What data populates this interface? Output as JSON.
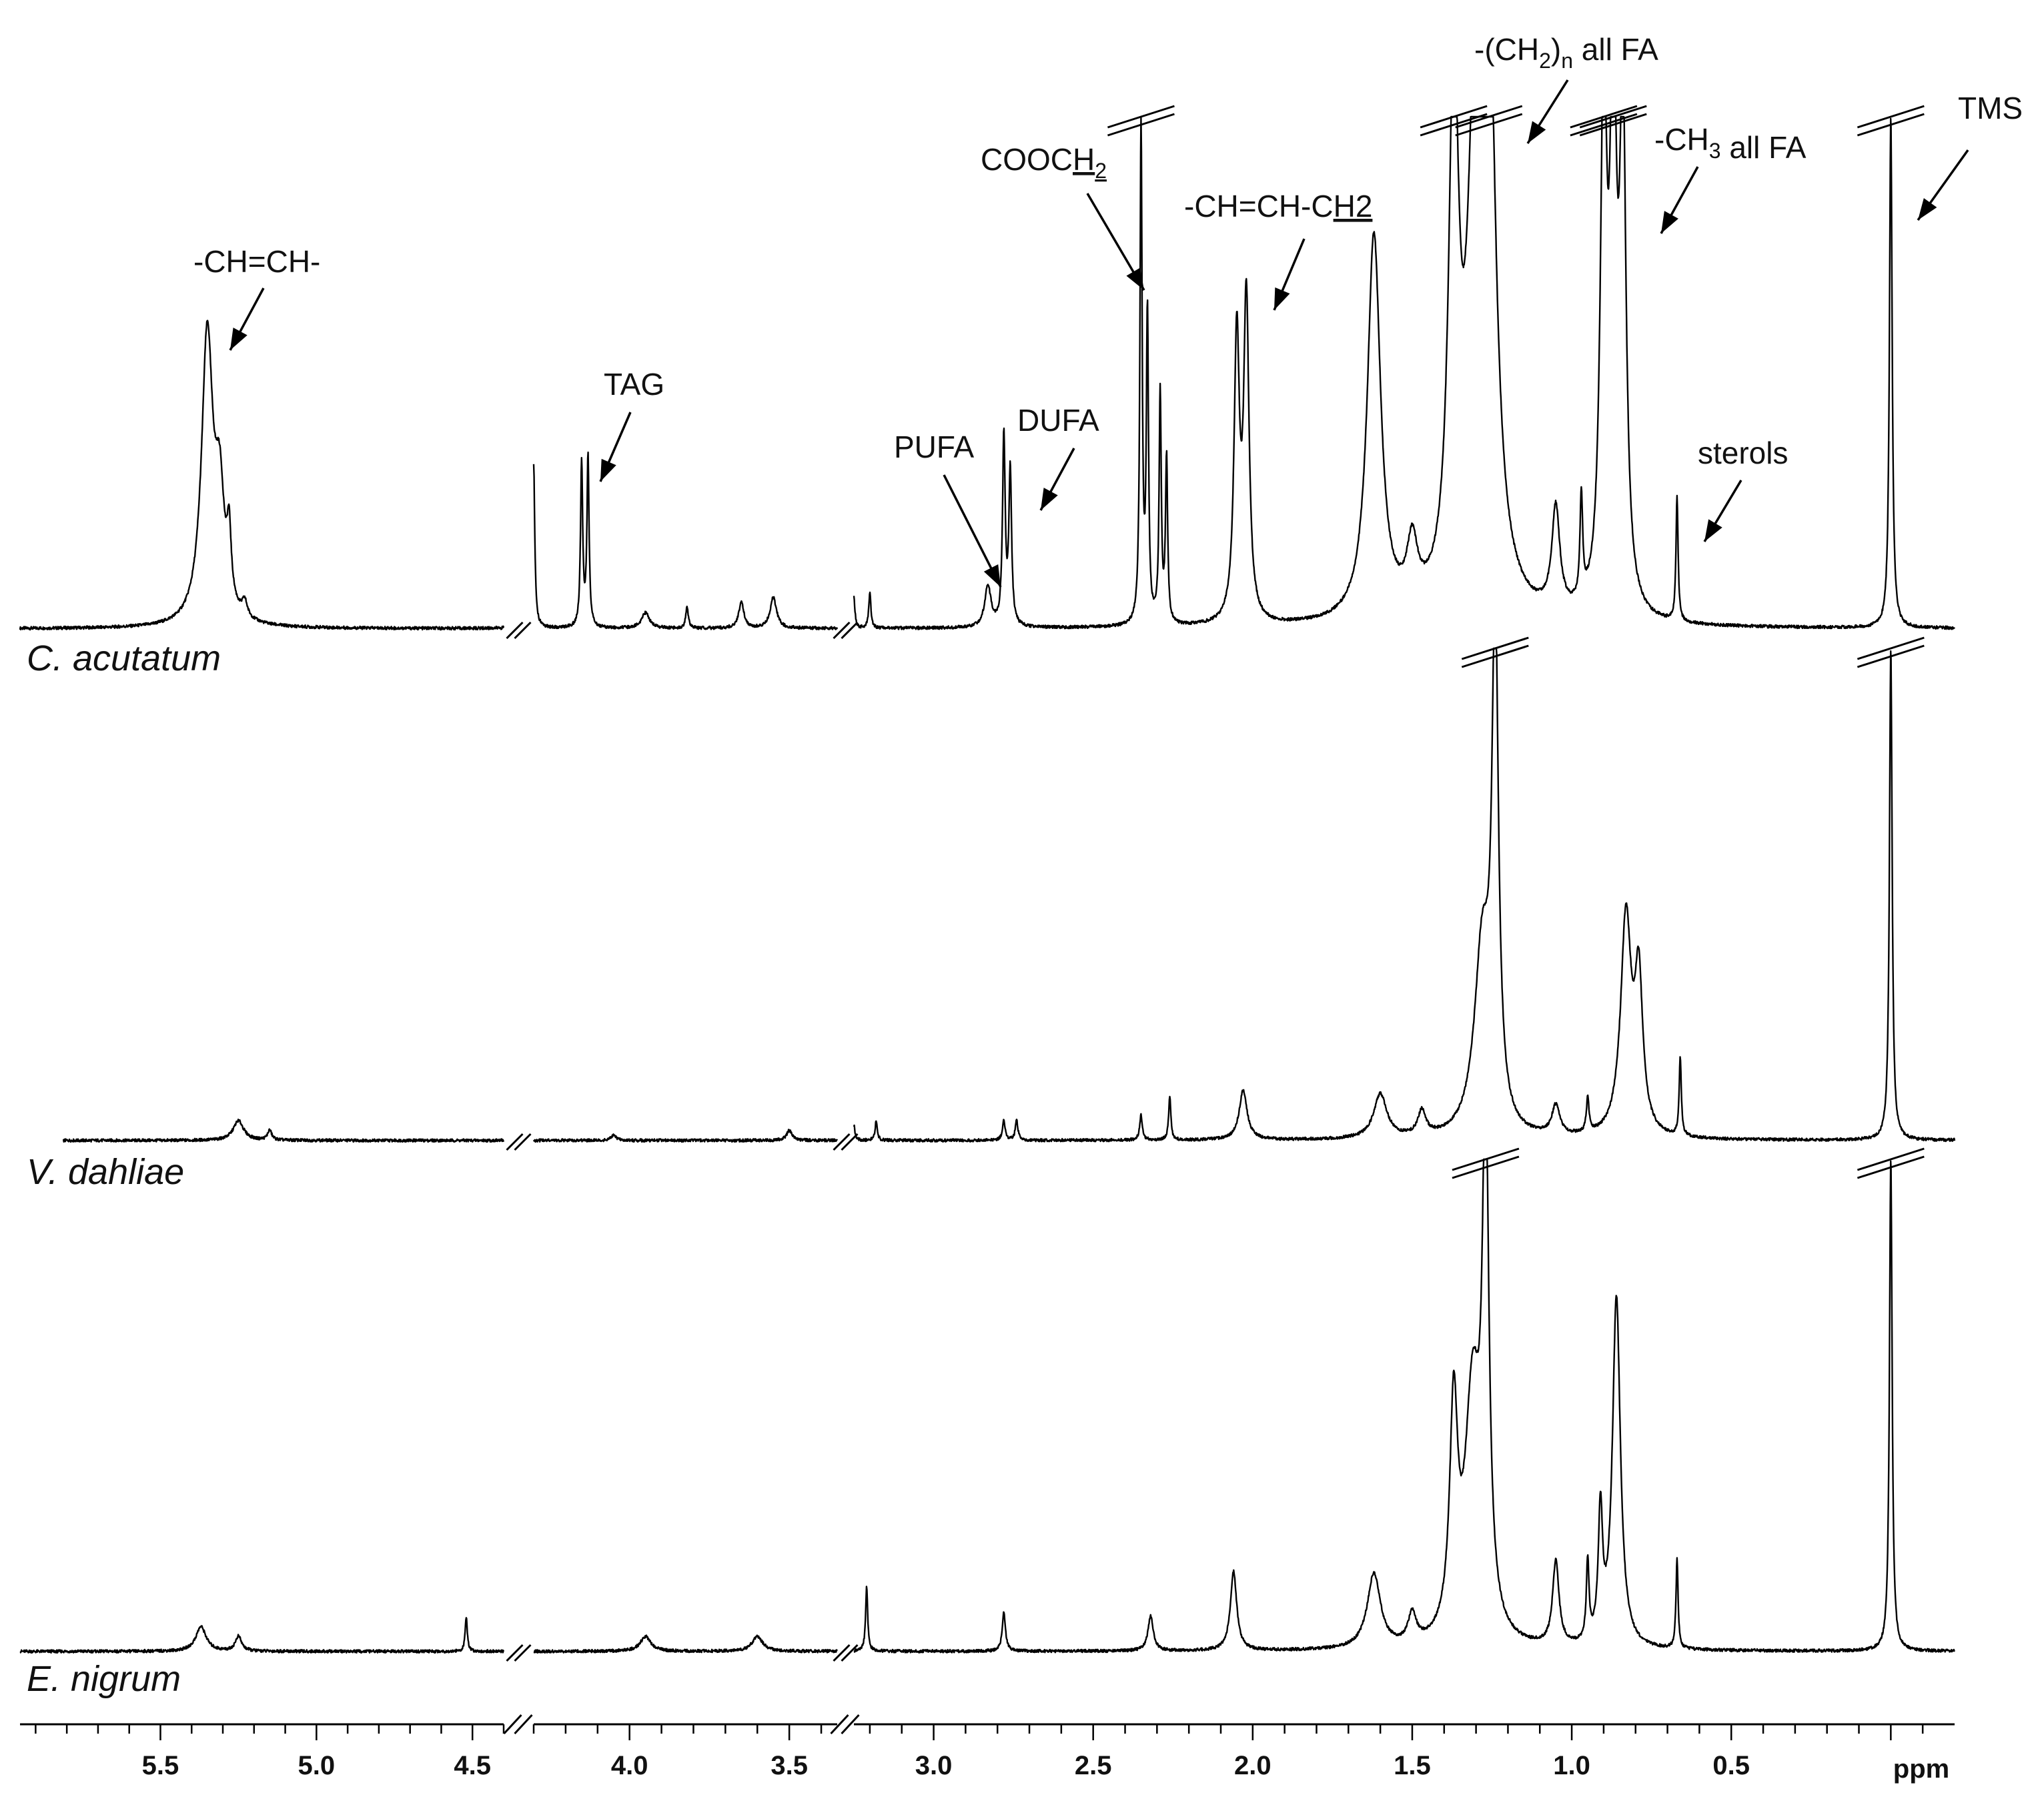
{
  "chart_data": {
    "type": "line",
    "title": "",
    "xlabel": "ppm",
    "ylabel": "",
    "x_axis": {
      "reversed": true,
      "segments": [
        [
          5.95,
          4.4
        ],
        [
          4.3,
          3.35
        ],
        [
          3.25,
          -0.2
        ]
      ],
      "ticks": [
        5.5,
        5.0,
        4.5,
        4.0,
        3.5,
        3.0,
        2.5,
        2.0,
        1.5,
        1.0,
        0.5
      ],
      "tick_labels": [
        "5.5",
        "5.0",
        "4.5",
        "4.0",
        "3.5",
        "3.0",
        "2.5",
        "2.0",
        "1.5",
        "1.0",
        "0.5"
      ],
      "unit_label": "ppm"
    },
    "grid": false,
    "legend": "none",
    "annotations": [
      {
        "text": "-CH=CH-",
        "ppm": 5.35
      },
      {
        "text": "TAG",
        "ppm": 4.13
      },
      {
        "text": "PUFA",
        "ppm": 2.83
      },
      {
        "text": "DUFA",
        "ppm": 2.77
      },
      {
        "text": "COOCH",
        "sub": "2",
        "underline": true,
        "ppm": 2.34
      },
      {
        "text": "-CH=CH-CH2",
        "underline_part": "H2",
        "ppm": 2.02
      },
      {
        "text": "-(CH",
        "sub": "2",
        "after": ")",
        "sub2": "n",
        "tail": " all FA",
        "ppm": 1.26
      },
      {
        "text": "-CH",
        "sub": "3",
        "tail": " all FA",
        "ppm": 0.88
      },
      {
        "text": "sterols",
        "ppm": 0.67
      },
      {
        "text": "TMS",
        "ppm": 0.0
      }
    ],
    "series": [
      {
        "name": "C. acutatum",
        "peaks": [
          {
            "x": 5.35,
            "y": 0.56,
            "w": 0.022
          },
          {
            "x": 5.31,
            "y": 0.22,
            "w": 0.018
          },
          {
            "x": 5.28,
            "y": 0.13,
            "w": 0.008
          },
          {
            "x": 5.23,
            "y": 0.03,
            "w": 0.01
          },
          {
            "x": 4.32,
            "y": 0.3,
            "w": 0.004
          },
          {
            "x": 4.3,
            "y": 0.31,
            "w": 0.004
          },
          {
            "x": 4.15,
            "y": 0.32,
            "w": 0.004
          },
          {
            "x": 4.13,
            "y": 0.33,
            "w": 0.004
          },
          {
            "x": 3.95,
            "y": 0.03,
            "w": 0.015
          },
          {
            "x": 3.82,
            "y": 0.04,
            "w": 0.005
          },
          {
            "x": 3.65,
            "y": 0.05,
            "w": 0.01
          },
          {
            "x": 3.55,
            "y": 0.06,
            "w": 0.012
          },
          {
            "x": 3.25,
            "y": 0.06,
            "w": 0.004
          },
          {
            "x": 3.2,
            "y": 0.07,
            "w": 0.004
          },
          {
            "x": 2.83,
            "y": 0.08,
            "w": 0.012
          },
          {
            "x": 2.78,
            "y": 0.37,
            "w": 0.005
          },
          {
            "x": 2.76,
            "y": 0.3,
            "w": 0.005
          },
          {
            "x": 2.35,
            "y": 0.98,
            "w": 0.004
          },
          {
            "x": 2.33,
            "y": 0.6,
            "w": 0.004
          },
          {
            "x": 2.29,
            "y": 0.45,
            "w": 0.004
          },
          {
            "x": 2.27,
            "y": 0.32,
            "w": 0.004
          },
          {
            "x": 2.05,
            "y": 0.55,
            "w": 0.01
          },
          {
            "x": 2.02,
            "y": 0.62,
            "w": 0.01
          },
          {
            "x": 1.62,
            "y": 0.75,
            "w": 0.025
          },
          {
            "x": 1.5,
            "y": 0.12,
            "w": 0.02
          },
          {
            "x": 1.37,
            "y": 1.0,
            "w": 0.018
          },
          {
            "x": 1.3,
            "y": 0.95,
            "w": 0.03
          },
          {
            "x": 1.26,
            "y": 1.0,
            "w": 0.025
          },
          {
            "x": 1.05,
            "y": 0.2,
            "w": 0.015
          },
          {
            "x": 0.97,
            "y": 0.2,
            "w": 0.005
          },
          {
            "x": 0.9,
            "y": 1.0,
            "w": 0.012
          },
          {
            "x": 0.87,
            "y": 1.0,
            "w": 0.012
          },
          {
            "x": 0.84,
            "y": 0.95,
            "w": 0.012
          },
          {
            "x": 0.67,
            "y": 0.24,
            "w": 0.004
          },
          {
            "x": 0.0,
            "y": 1.0,
            "w": 0.005
          }
        ]
      },
      {
        "name": "V. dahliae",
        "peaks": [
          {
            "x": 5.25,
            "y": 0.04,
            "w": 0.02
          },
          {
            "x": 5.15,
            "y": 0.02,
            "w": 0.008
          },
          {
            "x": 4.05,
            "y": 0.01,
            "w": 0.01
          },
          {
            "x": 3.5,
            "y": 0.02,
            "w": 0.01
          },
          {
            "x": 3.25,
            "y": 0.03,
            "w": 0.004
          },
          {
            "x": 3.18,
            "y": 0.04,
            "w": 0.004
          },
          {
            "x": 2.78,
            "y": 0.04,
            "w": 0.005
          },
          {
            "x": 2.74,
            "y": 0.04,
            "w": 0.005
          },
          {
            "x": 2.35,
            "y": 0.05,
            "w": 0.005
          },
          {
            "x": 2.26,
            "y": 0.09,
            "w": 0.004
          },
          {
            "x": 2.03,
            "y": 0.1,
            "w": 0.015
          },
          {
            "x": 1.6,
            "y": 0.09,
            "w": 0.025
          },
          {
            "x": 1.47,
            "y": 0.05,
            "w": 0.015
          },
          {
            "x": 1.28,
            "y": 0.38,
            "w": 0.03
          },
          {
            "x": 1.24,
            "y": 1.0,
            "w": 0.012
          },
          {
            "x": 1.05,
            "y": 0.06,
            "w": 0.015
          },
          {
            "x": 0.95,
            "y": 0.07,
            "w": 0.005
          },
          {
            "x": 0.83,
            "y": 0.44,
            "w": 0.02
          },
          {
            "x": 0.79,
            "y": 0.3,
            "w": 0.015
          },
          {
            "x": 0.66,
            "y": 0.16,
            "w": 0.004
          },
          {
            "x": 0.0,
            "y": 1.0,
            "w": 0.005
          }
        ]
      },
      {
        "name": "E. nigrum",
        "peaks": [
          {
            "x": 5.37,
            "y": 0.05,
            "w": 0.02
          },
          {
            "x": 5.25,
            "y": 0.03,
            "w": 0.012
          },
          {
            "x": 4.52,
            "y": 0.07,
            "w": 0.004
          },
          {
            "x": 3.95,
            "y": 0.03,
            "w": 0.02
          },
          {
            "x": 3.6,
            "y": 0.03,
            "w": 0.02
          },
          {
            "x": 3.21,
            "y": 0.13,
            "w": 0.004
          },
          {
            "x": 2.78,
            "y": 0.08,
            "w": 0.006
          },
          {
            "x": 2.32,
            "y": 0.07,
            "w": 0.01
          },
          {
            "x": 2.06,
            "y": 0.16,
            "w": 0.012
          },
          {
            "x": 1.62,
            "y": 0.15,
            "w": 0.025
          },
          {
            "x": 1.5,
            "y": 0.06,
            "w": 0.015
          },
          {
            "x": 1.37,
            "y": 0.45,
            "w": 0.015
          },
          {
            "x": 1.31,
            "y": 0.5,
            "w": 0.03
          },
          {
            "x": 1.27,
            "y": 1.0,
            "w": 0.012
          },
          {
            "x": 1.05,
            "y": 0.17,
            "w": 0.012
          },
          {
            "x": 0.95,
            "y": 0.16,
            "w": 0.005
          },
          {
            "x": 0.91,
            "y": 0.26,
            "w": 0.008
          },
          {
            "x": 0.86,
            "y": 0.71,
            "w": 0.015
          },
          {
            "x": 0.67,
            "y": 0.18,
            "w": 0.004
          },
          {
            "x": 0.0,
            "y": 1.0,
            "w": 0.005
          }
        ]
      }
    ]
  }
}
